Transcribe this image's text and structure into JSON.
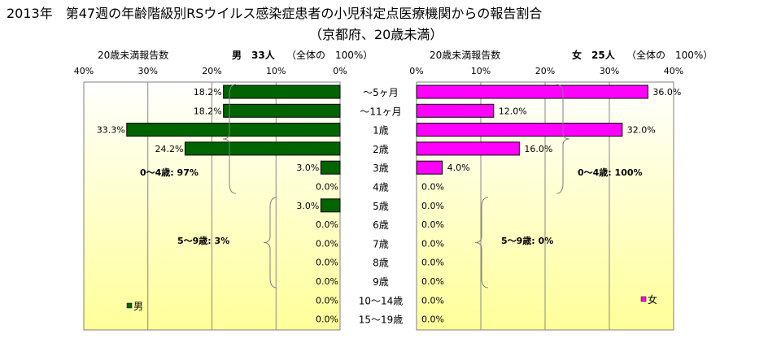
{
  "title": "2013年　第47週の年齢階級別RSウイルス感染症患者の小児科定点医療機関からの報告割合",
  "subtitle": "（京都府、20歳未満）",
  "colors": {
    "male": "#006400",
    "female": "#ff00ff",
    "plot_bg_top": "#ffffff",
    "plot_bg_bottom": "#ffff99",
    "bar_border": "#000000"
  },
  "chart_data": [
    {
      "type": "bar",
      "orientation": "horizontal",
      "direction": "right-to-left",
      "axis_label": "20歳未満報告数",
      "header": "男　33人",
      "header_note": "（全体の　100%）",
      "legend": "男",
      "xlim": [
        0,
        40
      ],
      "xticks": [
        "0%",
        "10%",
        "20%",
        "30%",
        "40%"
      ],
      "categories": [
        "～5ヶ月",
        "～11ヶ月",
        "1歳",
        "2歳",
        "3歳",
        "4歳",
        "5歳",
        "6歳",
        "7歳",
        "8歳",
        "9歳",
        "10～14歳",
        "15～19歳"
      ],
      "values": [
        18.2,
        18.2,
        33.3,
        24.2,
        3.0,
        0.0,
        3.0,
        0.0,
        0.0,
        0.0,
        0.0,
        0.0,
        0.0
      ],
      "data_labels": [
        "18.2%",
        "18.2%",
        "33.3%",
        "24.2%",
        "3.0%",
        "0.0%",
        "3.0%",
        "0.0%",
        "0.0%",
        "0.0%",
        "0.0%",
        "0.0%",
        "0.0%"
      ],
      "annotations": [
        "0～4歳:  97%",
        "5～9歳:  3%"
      ],
      "grid": true
    },
    {
      "type": "bar",
      "orientation": "horizontal",
      "direction": "left-to-right",
      "axis_label": "20歳未満報告数",
      "header": "女　25人",
      "header_note": "（全体の　100%）",
      "legend": "女",
      "xlim": [
        0,
        40
      ],
      "xticks": [
        "0%",
        "10%",
        "20%",
        "30%",
        "40%"
      ],
      "categories": [
        "～5ヶ月",
        "～11ヶ月",
        "1歳",
        "2歳",
        "3歳",
        "4歳",
        "5歳",
        "6歳",
        "7歳",
        "8歳",
        "9歳",
        "10～14歳",
        "15～19歳"
      ],
      "values": [
        36.0,
        12.0,
        32.0,
        16.0,
        4.0,
        0.0,
        0.0,
        0.0,
        0.0,
        0.0,
        0.0,
        0.0,
        0.0
      ],
      "data_labels": [
        "36.0%",
        "12.0%",
        "32.0%",
        "16.0%",
        "4.0%",
        "0.0%",
        "0.0%",
        "0.0%",
        "0.0%",
        "0.0%",
        "0.0%",
        "0.0%",
        "0.0%"
      ],
      "annotations": [
        "0～4歳: 100%",
        "5～9歳:  0%"
      ],
      "grid": true
    }
  ]
}
